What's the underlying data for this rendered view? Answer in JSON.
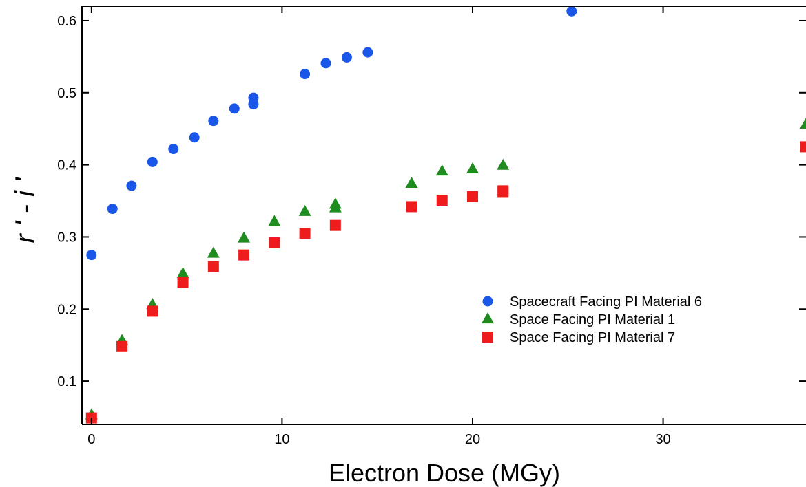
{
  "chart_data": {
    "type": "scatter",
    "title": "",
    "xlabel": "Electron Dose (MGy)",
    "ylabel": "r ' - i '",
    "xlim": [
      -0.5,
      37.5
    ],
    "ylim": [
      0.04,
      0.62
    ],
    "x_ticks": [
      0,
      10,
      20,
      30
    ],
    "y_ticks": [
      0.1,
      0.2,
      0.3,
      0.4,
      0.5,
      0.6
    ],
    "x_tick_labels": [
      "0",
      "10",
      "20",
      "30"
    ],
    "y_tick_labels": [
      "0.1",
      "0.2",
      "0.3",
      "0.4",
      "0.5",
      "0.6"
    ],
    "grid": false,
    "legend_position": "lower-right",
    "series": [
      {
        "name": "Spacecraft Facing PI Material 6",
        "marker": "circle",
        "color": "#1a56e8",
        "x": [
          0,
          1.1,
          2.1,
          3.2,
          4.3,
          5.4,
          6.4,
          7.5,
          8.5,
          8.5,
          11.2,
          12.3,
          13.4,
          14.5,
          25.2
        ],
        "y": [
          0.275,
          0.339,
          0.371,
          0.404,
          0.422,
          0.438,
          0.461,
          0.478,
          0.484,
          0.493,
          0.526,
          0.541,
          0.549,
          0.556,
          0.613
        ]
      },
      {
        "name": "Space Facing PI Material 1",
        "marker": "triangle",
        "color": "#1e8c1e",
        "x": [
          0,
          1.6,
          3.2,
          4.8,
          6.4,
          8.0,
          9.6,
          11.2,
          12.8,
          12.8,
          16.8,
          18.4,
          20.0,
          21.6,
          37.5
        ],
        "y": [
          0.053,
          0.156,
          0.206,
          0.249,
          0.277,
          0.298,
          0.321,
          0.335,
          0.34,
          0.345,
          0.374,
          0.391,
          0.394,
          0.399,
          0.456
        ]
      },
      {
        "name": "Space Facing PI Material 7",
        "marker": "square",
        "color": "#ee1c1c",
        "x": [
          0,
          1.6,
          3.2,
          4.8,
          6.4,
          8.0,
          9.6,
          11.2,
          12.8,
          16.8,
          18.4,
          20.0,
          21.6,
          21.6,
          37.5
        ],
        "y": [
          0.049,
          0.148,
          0.197,
          0.237,
          0.259,
          0.275,
          0.292,
          0.305,
          0.316,
          0.342,
          0.351,
          0.356,
          0.362,
          0.364,
          0.425
        ]
      }
    ]
  }
}
